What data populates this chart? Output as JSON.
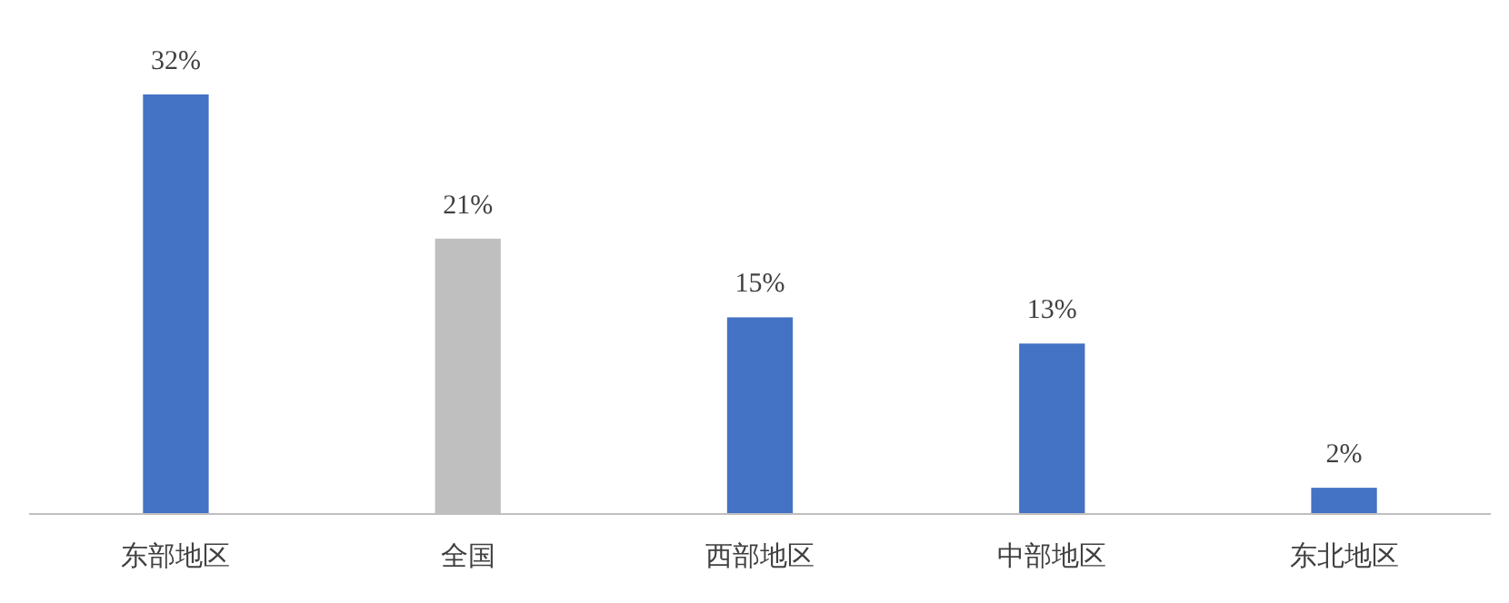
{
  "chart_data": {
    "type": "bar",
    "categories": [
      "东部地区",
      "全国",
      "西部地区",
      "中部地区",
      "东北地区"
    ],
    "values": [
      32,
      21,
      15,
      13,
      2
    ],
    "colors": [
      "#4472c4",
      "#bfbfbf",
      "#4472c4",
      "#4472c4",
      "#4472c4"
    ],
    "value_labels": [
      "32%",
      "21%",
      "15%",
      "13%",
      "2%"
    ]
  }
}
